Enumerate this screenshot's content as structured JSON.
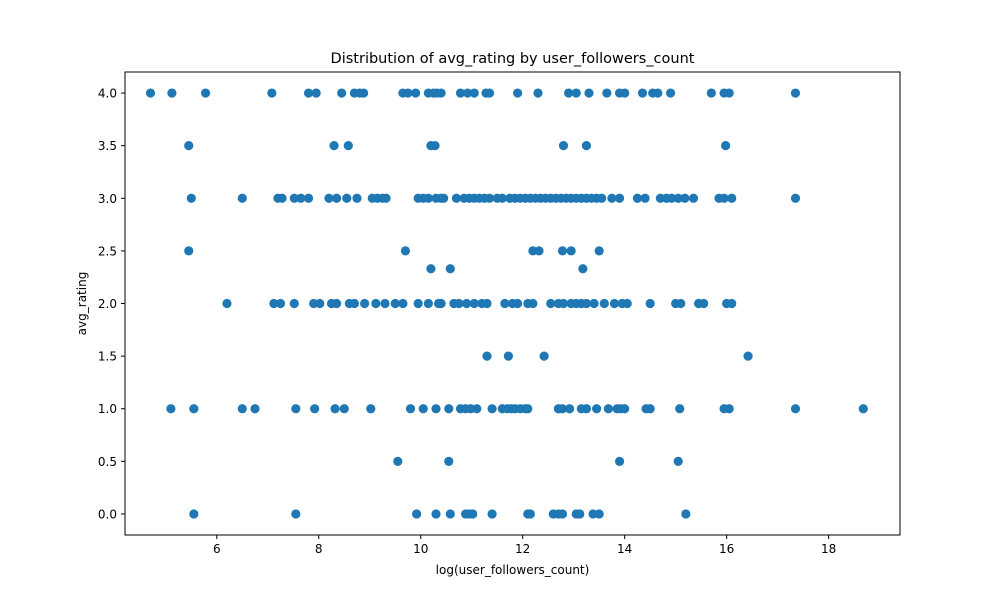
{
  "chart_data": {
    "type": "scatter",
    "title": "Distribution of avg_rating by user_followers_count",
    "xlabel": "log(user_followers_count)",
    "ylabel": "avg_rating",
    "xlim": [
      4.2,
      19.4
    ],
    "ylim": [
      -0.2,
      4.2
    ],
    "xticks": [
      6,
      8,
      10,
      12,
      14,
      16,
      18
    ],
    "yticks": [
      0.0,
      0.5,
      1.0,
      1.5,
      2.0,
      2.5,
      3.0,
      3.5,
      4.0
    ],
    "grid": false,
    "marker_color": "#1f77b4",
    "series": [
      {
        "points": [
          [
            4.7,
            4.0
          ],
          [
            5.12,
            4.0
          ],
          [
            5.78,
            4.0
          ],
          [
            7.08,
            4.0
          ],
          [
            7.8,
            4.0
          ],
          [
            7.95,
            4.0
          ],
          [
            8.45,
            4.0
          ],
          [
            8.7,
            4.0
          ],
          [
            8.8,
            4.0
          ],
          [
            8.88,
            4.0
          ],
          [
            9.65,
            4.0
          ],
          [
            9.75,
            4.0
          ],
          [
            9.9,
            4.0
          ],
          [
            10.15,
            4.0
          ],
          [
            10.25,
            4.0
          ],
          [
            10.32,
            4.0
          ],
          [
            10.4,
            4.0
          ],
          [
            10.78,
            4.0
          ],
          [
            10.92,
            4.0
          ],
          [
            11.05,
            4.0
          ],
          [
            11.28,
            4.0
          ],
          [
            11.35,
            4.0
          ],
          [
            11.9,
            4.0
          ],
          [
            12.3,
            4.0
          ],
          [
            12.9,
            4.0
          ],
          [
            13.05,
            4.0
          ],
          [
            13.3,
            4.0
          ],
          [
            13.65,
            4.0
          ],
          [
            13.9,
            4.0
          ],
          [
            14.0,
            4.0
          ],
          [
            14.35,
            4.0
          ],
          [
            14.55,
            4.0
          ],
          [
            14.65,
            4.0
          ],
          [
            14.9,
            4.0
          ],
          [
            15.7,
            4.0
          ],
          [
            15.95,
            4.0
          ],
          [
            16.05,
            4.0
          ],
          [
            17.35,
            4.0
          ],
          [
            5.45,
            3.5
          ],
          [
            8.3,
            3.5
          ],
          [
            8.58,
            3.5
          ],
          [
            10.2,
            3.5
          ],
          [
            10.28,
            3.5
          ],
          [
            12.8,
            3.5
          ],
          [
            13.25,
            3.5
          ],
          [
            15.98,
            3.5
          ],
          [
            5.5,
            3.0
          ],
          [
            6.5,
            3.0
          ],
          [
            7.2,
            3.0
          ],
          [
            7.28,
            3.0
          ],
          [
            7.52,
            3.0
          ],
          [
            7.65,
            3.0
          ],
          [
            7.8,
            3.0
          ],
          [
            8.2,
            3.0
          ],
          [
            8.35,
            3.0
          ],
          [
            8.55,
            3.0
          ],
          [
            8.75,
            3.0
          ],
          [
            9.05,
            3.0
          ],
          [
            9.15,
            3.0
          ],
          [
            9.25,
            3.0
          ],
          [
            9.32,
            3.0
          ],
          [
            9.95,
            3.0
          ],
          [
            10.05,
            3.0
          ],
          [
            10.15,
            3.0
          ],
          [
            10.3,
            3.0
          ],
          [
            10.4,
            3.0
          ],
          [
            10.45,
            3.0
          ],
          [
            10.7,
            3.0
          ],
          [
            10.85,
            3.0
          ],
          [
            10.95,
            3.0
          ],
          [
            11.05,
            3.0
          ],
          [
            11.15,
            3.0
          ],
          [
            11.25,
            3.0
          ],
          [
            11.35,
            3.0
          ],
          [
            11.5,
            3.0
          ],
          [
            11.6,
            3.0
          ],
          [
            11.75,
            3.0
          ],
          [
            11.85,
            3.0
          ],
          [
            11.95,
            3.0
          ],
          [
            12.05,
            3.0
          ],
          [
            12.15,
            3.0
          ],
          [
            12.25,
            3.0
          ],
          [
            12.35,
            3.0
          ],
          [
            12.45,
            3.0
          ],
          [
            12.55,
            3.0
          ],
          [
            12.65,
            3.0
          ],
          [
            12.75,
            3.0
          ],
          [
            12.85,
            3.0
          ],
          [
            12.95,
            3.0
          ],
          [
            13.05,
            3.0
          ],
          [
            13.15,
            3.0
          ],
          [
            13.25,
            3.0
          ],
          [
            13.35,
            3.0
          ],
          [
            13.45,
            3.0
          ],
          [
            13.55,
            3.0
          ],
          [
            13.75,
            3.0
          ],
          [
            13.9,
            3.0
          ],
          [
            14.25,
            3.0
          ],
          [
            14.4,
            3.0
          ],
          [
            14.7,
            3.0
          ],
          [
            14.82,
            3.0
          ],
          [
            14.92,
            3.0
          ],
          [
            15.05,
            3.0
          ],
          [
            15.18,
            3.0
          ],
          [
            15.35,
            3.0
          ],
          [
            15.85,
            3.0
          ],
          [
            15.95,
            3.0
          ],
          [
            16.1,
            3.0
          ],
          [
            17.35,
            3.0
          ],
          [
            5.45,
            2.5
          ],
          [
            9.7,
            2.5
          ],
          [
            12.2,
            2.5
          ],
          [
            12.32,
            2.5
          ],
          [
            12.78,
            2.5
          ],
          [
            12.95,
            2.5
          ],
          [
            13.5,
            2.5
          ],
          [
            10.2,
            2.33
          ],
          [
            10.58,
            2.33
          ],
          [
            13.18,
            2.33
          ],
          [
            6.2,
            2.0
          ],
          [
            7.12,
            2.0
          ],
          [
            7.25,
            2.0
          ],
          [
            7.52,
            2.0
          ],
          [
            7.9,
            2.0
          ],
          [
            8.02,
            2.0
          ],
          [
            8.25,
            2.0
          ],
          [
            8.35,
            2.0
          ],
          [
            8.6,
            2.0
          ],
          [
            8.7,
            2.0
          ],
          [
            8.9,
            2.0
          ],
          [
            9.12,
            2.0
          ],
          [
            9.3,
            2.0
          ],
          [
            9.5,
            2.0
          ],
          [
            9.65,
            2.0
          ],
          [
            9.95,
            2.0
          ],
          [
            10.15,
            2.0
          ],
          [
            10.35,
            2.0
          ],
          [
            10.4,
            2.0
          ],
          [
            10.65,
            2.0
          ],
          [
            10.75,
            2.0
          ],
          [
            10.9,
            2.0
          ],
          [
            11.05,
            2.0
          ],
          [
            11.2,
            2.0
          ],
          [
            11.3,
            2.0
          ],
          [
            11.65,
            2.0
          ],
          [
            11.8,
            2.0
          ],
          [
            11.9,
            2.0
          ],
          [
            12.1,
            2.0
          ],
          [
            12.2,
            2.0
          ],
          [
            12.55,
            2.0
          ],
          [
            12.7,
            2.0
          ],
          [
            12.8,
            2.0
          ],
          [
            12.95,
            2.0
          ],
          [
            13.05,
            2.0
          ],
          [
            13.15,
            2.0
          ],
          [
            13.25,
            2.0
          ],
          [
            13.4,
            2.0
          ],
          [
            13.6,
            2.0
          ],
          [
            13.8,
            2.0
          ],
          [
            13.95,
            2.0
          ],
          [
            14.05,
            2.0
          ],
          [
            14.5,
            2.0
          ],
          [
            15.0,
            2.0
          ],
          [
            15.1,
            2.0
          ],
          [
            15.45,
            2.0
          ],
          [
            15.55,
            2.0
          ],
          [
            16.0,
            2.0
          ],
          [
            16.1,
            2.0
          ],
          [
            11.3,
            1.5
          ],
          [
            11.72,
            1.5
          ],
          [
            12.42,
            1.5
          ],
          [
            16.42,
            1.5
          ],
          [
            5.1,
            1.0
          ],
          [
            5.55,
            1.0
          ],
          [
            6.5,
            1.0
          ],
          [
            6.75,
            1.0
          ],
          [
            7.55,
            1.0
          ],
          [
            7.92,
            1.0
          ],
          [
            8.32,
            1.0
          ],
          [
            8.5,
            1.0
          ],
          [
            9.02,
            1.0
          ],
          [
            9.8,
            1.0
          ],
          [
            10.05,
            1.0
          ],
          [
            10.3,
            1.0
          ],
          [
            10.55,
            1.0
          ],
          [
            10.78,
            1.0
          ],
          [
            10.88,
            1.0
          ],
          [
            10.98,
            1.0
          ],
          [
            11.1,
            1.0
          ],
          [
            11.4,
            1.0
          ],
          [
            11.6,
            1.0
          ],
          [
            11.7,
            1.0
          ],
          [
            11.78,
            1.0
          ],
          [
            11.85,
            1.0
          ],
          [
            11.95,
            1.0
          ],
          [
            12.05,
            1.0
          ],
          [
            12.1,
            1.0
          ],
          [
            12.7,
            1.0
          ],
          [
            12.78,
            1.0
          ],
          [
            12.92,
            1.0
          ],
          [
            13.15,
            1.0
          ],
          [
            13.25,
            1.0
          ],
          [
            13.45,
            1.0
          ],
          [
            13.68,
            1.0
          ],
          [
            13.85,
            1.0
          ],
          [
            13.92,
            1.0
          ],
          [
            14.0,
            1.0
          ],
          [
            14.42,
            1.0
          ],
          [
            14.5,
            1.0
          ],
          [
            15.08,
            1.0
          ],
          [
            15.95,
            1.0
          ],
          [
            16.05,
            1.0
          ],
          [
            17.35,
            1.0
          ],
          [
            18.68,
            1.0
          ],
          [
            9.55,
            0.5
          ],
          [
            10.55,
            0.5
          ],
          [
            13.9,
            0.5
          ],
          [
            15.05,
            0.5
          ],
          [
            5.55,
            0.0
          ],
          [
            7.55,
            0.0
          ],
          [
            9.92,
            0.0
          ],
          [
            10.3,
            0.0
          ],
          [
            10.58,
            0.0
          ],
          [
            10.88,
            0.0
          ],
          [
            10.95,
            0.0
          ],
          [
            11.02,
            0.0
          ],
          [
            11.4,
            0.0
          ],
          [
            12.1,
            0.0
          ],
          [
            12.15,
            0.0
          ],
          [
            12.6,
            0.0
          ],
          [
            12.7,
            0.0
          ],
          [
            12.78,
            0.0
          ],
          [
            13.05,
            0.0
          ],
          [
            13.12,
            0.0
          ],
          [
            13.38,
            0.0
          ],
          [
            13.5,
            0.0
          ],
          [
            15.2,
            0.0
          ]
        ]
      }
    ]
  }
}
